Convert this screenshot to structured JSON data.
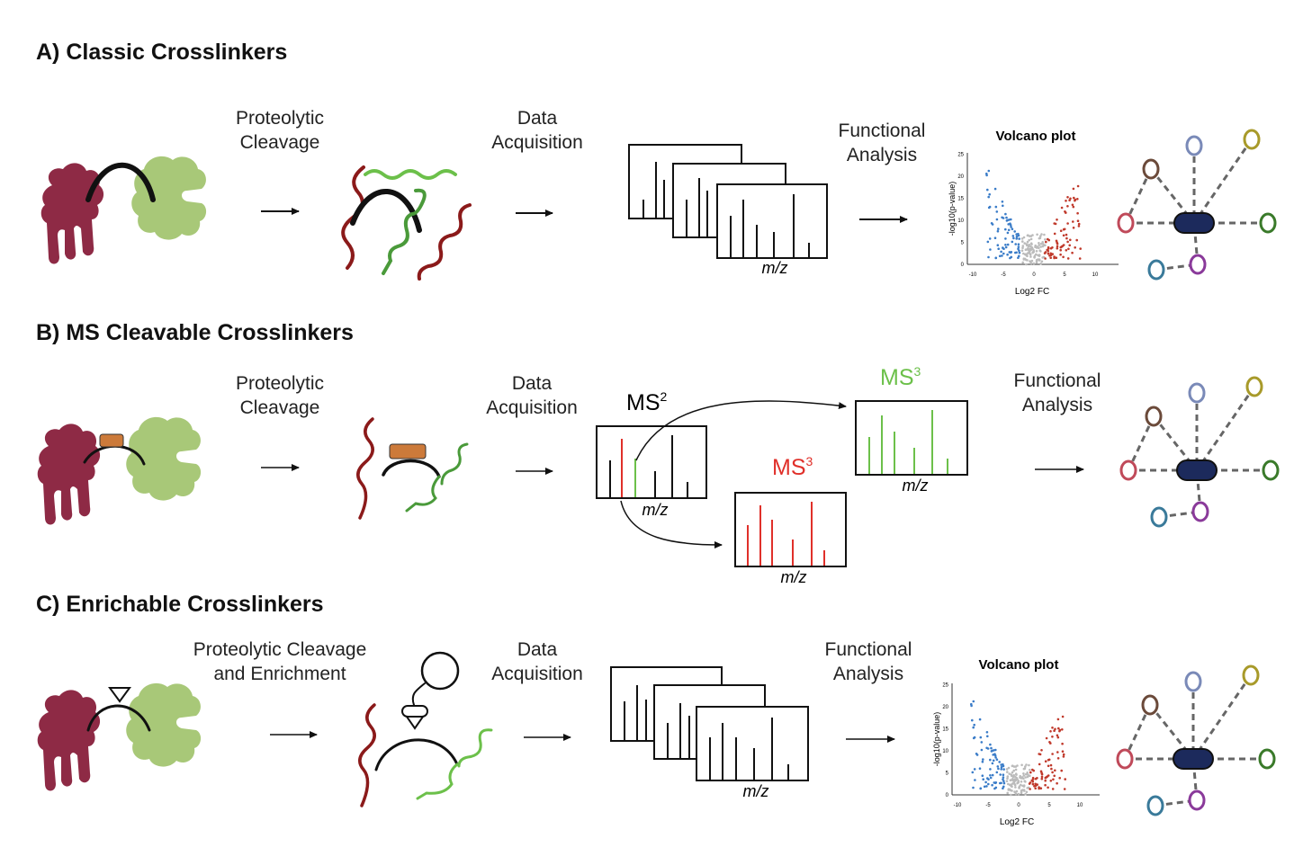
{
  "sections": {
    "a": {
      "title": "A) Classic Crosslinkers",
      "step1": "Proteolytic\nCleavage",
      "step2": "Data\nAcquisition",
      "step3": "Functional\nAnalysis"
    },
    "b": {
      "title": "B) MS Cleavable Crosslinkers",
      "step1": "Proteolytic\nCleavage",
      "step2": "Data\nAcquisition",
      "step3": "Functional\nAnalysis",
      "ms2": "MS",
      "ms2_sup": "2",
      "ms3": "MS",
      "ms3_sup": "3"
    },
    "c": {
      "title": "C) Enrichable Crosslinkers",
      "step1": "Proteolytic Cleavage\nand Enrichment",
      "step2": "Data\nAcquisition",
      "step3": "Functional\nAnalysis"
    }
  },
  "spectrum_axis_label": "m/z",
  "volcano": {
    "title": "Volcano plot",
    "xlabel": "Log2 FC",
    "ylabel_a": "-log10(p-value)",
    "ylabel_c": "-log10(p-value)",
    "x_ticks": [
      "-10",
      "-5",
      "0",
      "5",
      "10"
    ],
    "y_ticks": [
      "0",
      "5",
      "10",
      "15",
      "20",
      "25"
    ]
  },
  "colors": {
    "protein_red": "#8e2a45",
    "protein_green": "#a8c878",
    "peptide_red": "#8b1a1a",
    "peptide_green": "#4a9a3a",
    "light_green": "#6cc04a",
    "linker_orange": "#cc7a3a",
    "ms_red": "#e0302a",
    "ms_green": "#6cc04a",
    "volcano_blue": "#3a7cc8",
    "volcano_red": "#c0392b",
    "volcano_grey": "#bbbbbb",
    "hub_navy": "#1c2a5c"
  }
}
